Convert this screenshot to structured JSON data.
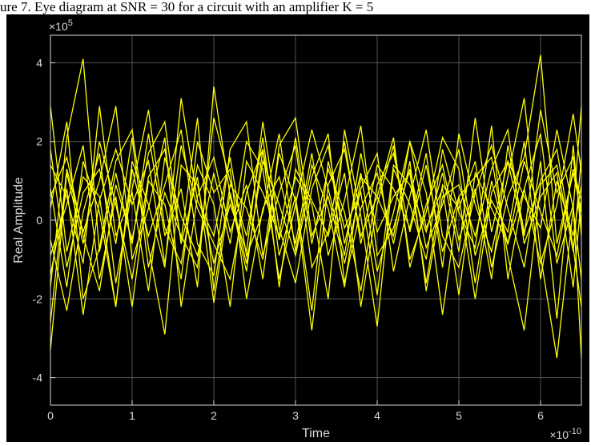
{
  "caption": "ure 7. Eye diagram at SNR = 30 for a circuit with an amplifier K = 5",
  "colors": {
    "background": "#000000",
    "trace": "#ffff00",
    "axis": "#d9d9d9",
    "grid": "#555555"
  },
  "chart_data": {
    "type": "line",
    "title": "",
    "xlabel": "Time",
    "ylabel": "Real Amplitude",
    "x_exponent_label": "×10",
    "x_exponent": "-10",
    "y_exponent_label": "×10",
    "y_exponent": "5",
    "xlim": [
      0,
      6.5e-10
    ],
    "ylim": [
      -470000,
      470000
    ],
    "x_ticks": [
      0,
      1e-10,
      2e-10,
      3e-10,
      4e-10,
      5e-10,
      6e-10
    ],
    "x_tick_labels": [
      "0",
      "1",
      "2",
      "3",
      "4",
      "5",
      "6"
    ],
    "y_ticks": [
      -400000,
      -200000,
      0,
      200000,
      400000
    ],
    "y_tick_labels": [
      "-4",
      "-2",
      "0",
      "2",
      "4"
    ],
    "grid": true,
    "x": [
      0,
      2e-11,
      4e-11,
      6e-11,
      8e-11,
      1e-10,
      1.2e-10,
      1.4e-10,
      1.6e-10,
      1.8e-10,
      2e-10,
      2.2e-10,
      2.4e-10,
      2.6e-10,
      2.8e-10,
      3e-10,
      3.2e-10,
      3.4e-10,
      3.6e-10,
      3.8e-10,
      4e-10,
      4.2e-10,
      4.4e-10,
      4.6e-10,
      4.8e-10,
      5e-10,
      5.2e-10,
      5.4e-10,
      5.6e-10,
      5.8e-10,
      6e-10,
      6.2e-10,
      6.4e-10,
      6.5e-10
    ],
    "series": [
      {
        "values": [
          290000,
          -80000,
          110000,
          60000,
          -220000,
          150000,
          40000,
          -120000,
          310000,
          50000,
          -40000,
          160000,
          -90000,
          20000,
          220000,
          -80000,
          140000,
          30000,
          -170000,
          110000,
          60000,
          -40000,
          200000,
          -20000,
          80000,
          -190000,
          120000,
          30000,
          -60000,
          150000,
          20000,
          -90000,
          130000,
          50000
        ]
      },
      {
        "values": [
          -330000,
          120000,
          -60000,
          200000,
          40000,
          -150000,
          110000,
          180000,
          -50000,
          260000,
          -180000,
          90000,
          30000,
          -100000,
          170000,
          50000,
          -280000,
          90000,
          180000,
          -40000,
          60000,
          210000,
          -120000,
          40000,
          140000,
          -50000,
          80000,
          -150000,
          190000,
          -30000,
          100000,
          180000,
          -70000,
          -220000
        ]
      },
      {
        "values": [
          -170000,
          210000,
          410000,
          -80000,
          120000,
          -60000,
          220000,
          -40000,
          80000,
          -170000,
          340000,
          60000,
          -130000,
          180000,
          -50000,
          110000,
          40000,
          -200000,
          230000,
          10000,
          -270000,
          130000,
          40000,
          -100000,
          180000,
          20000,
          -70000,
          240000,
          -150000,
          80000,
          220000,
          -110000,
          40000,
          -350000
        ]
      },
      {
        "values": [
          -50000,
          -230000,
          20000,
          170000,
          -160000,
          80000,
          280000,
          -20000,
          -110000,
          140000,
          40000,
          -220000,
          150000,
          70000,
          -40000,
          210000,
          -60000,
          130000,
          20000,
          -180000,
          90000,
          170000,
          -30000,
          140000,
          -80000,
          60000,
          -200000,
          70000,
          150000,
          -40000,
          280000,
          70000,
          160000,
          -10000
        ]
      },
      {
        "values": [
          80000,
          -170000,
          150000,
          20000,
          -220000,
          130000,
          -40000,
          90000,
          230000,
          -60000,
          -140000,
          180000,
          250000,
          -90000,
          70000,
          190000,
          -120000,
          -30000,
          200000,
          -60000,
          140000,
          80000,
          -20000,
          170000,
          -120000,
          220000,
          40000,
          -80000,
          110000,
          310000,
          -90000,
          -350000,
          30000,
          290000
        ]
      },
      {
        "values": [
          140000,
          60000,
          -110000,
          290000,
          -40000,
          70000,
          -180000,
          160000,
          10000,
          -90000,
          120000,
          -60000,
          200000,
          130000,
          -150000,
          40000,
          230000,
          80000,
          -90000,
          170000,
          -30000,
          60000,
          120000,
          -160000,
          90000,
          30000,
          150000,
          -120000,
          60000,
          160000,
          420000,
          -60000,
          120000,
          20000
        ]
      },
      {
        "values": [
          30000,
          250000,
          -200000,
          -70000,
          150000,
          230000,
          -70000,
          -290000,
          140000,
          90000,
          -110000,
          40000,
          -80000,
          250000,
          -20000,
          -160000,
          80000,
          190000,
          -60000,
          120000,
          -130000,
          20000,
          200000,
          70000,
          -240000,
          60000,
          110000,
          160000,
          -90000,
          -280000,
          90000,
          140000,
          -80000,
          160000
        ]
      },
      {
        "values": [
          -90000,
          40000,
          190000,
          -150000,
          60000,
          -220000,
          100000,
          40000,
          -150000,
          200000,
          70000,
          130000,
          -200000,
          30000,
          110000,
          -60000,
          170000,
          -90000,
          50000,
          240000,
          -90000,
          -20000,
          130000,
          -70000,
          40000,
          180000,
          -90000,
          50000,
          -30000,
          200000,
          -150000,
          100000,
          -40000,
          90000
        ]
      },
      {
        "values": [
          -260000,
          130000,
          -30000,
          100000,
          290000,
          -100000,
          30000,
          210000,
          -220000,
          60000,
          160000,
          -30000,
          90000,
          -150000,
          190000,
          260000,
          -40000,
          60000,
          -110000,
          80000,
          170000,
          -130000,
          60000,
          230000,
          -40000,
          -120000,
          70000,
          190000,
          30000,
          -120000,
          150000,
          -250000,
          190000,
          -40000
        ]
      },
      {
        "values": [
          180000,
          -120000,
          70000,
          130000,
          -60000,
          210000,
          -120000,
          70000,
          -40000,
          -120000,
          260000,
          100000,
          -40000,
          210000,
          -90000,
          60000,
          -230000,
          150000,
          -20000,
          70000,
          -190000,
          140000,
          90000,
          -30000,
          120000,
          -80000,
          260000,
          -30000,
          150000,
          60000,
          -20000,
          230000,
          30000,
          -150000
        ]
      },
      {
        "values": [
          -140000,
          80000,
          -240000,
          50000,
          180000,
          40000,
          150000,
          -110000,
          190000,
          30000,
          -60000,
          -150000,
          70000,
          180000,
          -170000,
          130000,
          50000,
          -40000,
          120000,
          -220000,
          40000,
          190000,
          -100000,
          20000,
          210000,
          130000,
          -160000,
          100000,
          -60000,
          80000,
          -110000,
          40000,
          270000,
          120000
        ]
      },
      {
        "values": [
          60000,
          160000,
          -40000,
          -180000,
          90000,
          -50000,
          170000,
          250000,
          -60000,
          110000,
          -210000,
          70000,
          -110000,
          150000,
          40000,
          -90000,
          110000,
          220000,
          -160000,
          30000,
          120000,
          -60000,
          150000,
          -180000,
          60000,
          90000,
          -40000,
          130000,
          230000,
          -60000,
          60000,
          120000,
          -170000,
          60000
        ]
      }
    ]
  }
}
